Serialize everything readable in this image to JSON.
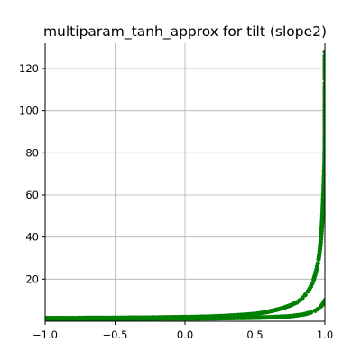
{
  "chart_data": {
    "type": "scatter",
    "title": "multiparam_tanh_approx for tilt (slope2)",
    "xlabel": "",
    "ylabel": "",
    "xlim": [
      -1.0,
      1.0
    ],
    "ylim": [
      0.0,
      132.0
    ],
    "x_ticks": [
      -1.0,
      -0.5,
      0.0,
      0.5,
      1.0
    ],
    "x_tick_labels": [
      "−1.0",
      "−0.5",
      "0.0",
      "0.5",
      "1.0"
    ],
    "y_ticks": [
      20,
      40,
      60,
      80,
      100,
      120
    ],
    "y_tick_labels": [
      "20",
      "40",
      "60",
      "80",
      "100",
      "120"
    ],
    "grid": true,
    "marker_color": "#008000",
    "series": [
      {
        "x": [
          -1.0,
          -0.9,
          -0.8,
          -0.7,
          -0.6,
          -0.5,
          -0.4,
          -0.3,
          -0.2,
          -0.1,
          0.0,
          0.1,
          0.2,
          0.3,
          0.4,
          0.5,
          0.55,
          0.6,
          0.65,
          0.7,
          0.75,
          0.8,
          0.82,
          0.84,
          0.86,
          0.88,
          0.9,
          0.91,
          0.92,
          0.93,
          0.94,
          0.95,
          0.955,
          0.96,
          0.965,
          0.97,
          0.975,
          0.98,
          0.985,
          0.99,
          0.993,
          0.996,
          0.998,
          1.0,
          1.0,
          1.0,
          1.0,
          1.0,
          1.0,
          1.0,
          1.0,
          1.0,
          1.0
        ],
        "y": [
          1.5,
          1.5,
          1.5,
          1.6,
          1.6,
          1.6,
          1.7,
          1.7,
          1.8,
          1.9,
          2.0,
          2.1,
          2.3,
          2.6,
          3.0,
          3.5,
          4.0,
          4.6,
          5.4,
          6.3,
          7.5,
          9.0,
          10.0,
          11.2,
          12.6,
          14.3,
          16.5,
          18.0,
          19.8,
          22.0,
          24.5,
          27.5,
          29.5,
          31.8,
          34.5,
          37.8,
          41.8,
          46.8,
          53.0,
          61.0,
          66.0,
          72.0,
          76.0,
          84.0,
          90.0,
          98.0,
          104.0,
          110.0,
          113.0,
          115.0,
          121.0,
          126.0,
          128.0
        ]
      },
      {
        "x": [
          -1.0,
          -0.8,
          -0.6,
          -0.4,
          -0.2,
          0.0,
          0.2,
          0.4,
          0.5,
          0.6,
          0.7,
          0.75,
          0.8,
          0.85,
          0.9,
          0.93,
          0.95,
          0.97,
          0.98,
          0.99,
          1.0
        ],
        "y": [
          1.2,
          1.2,
          1.2,
          1.2,
          1.3,
          1.3,
          1.4,
          1.6,
          1.7,
          1.9,
          2.2,
          2.4,
          2.8,
          3.3,
          4.2,
          5.0,
          5.8,
          7.0,
          7.8,
          8.8,
          10.0
        ]
      }
    ]
  }
}
